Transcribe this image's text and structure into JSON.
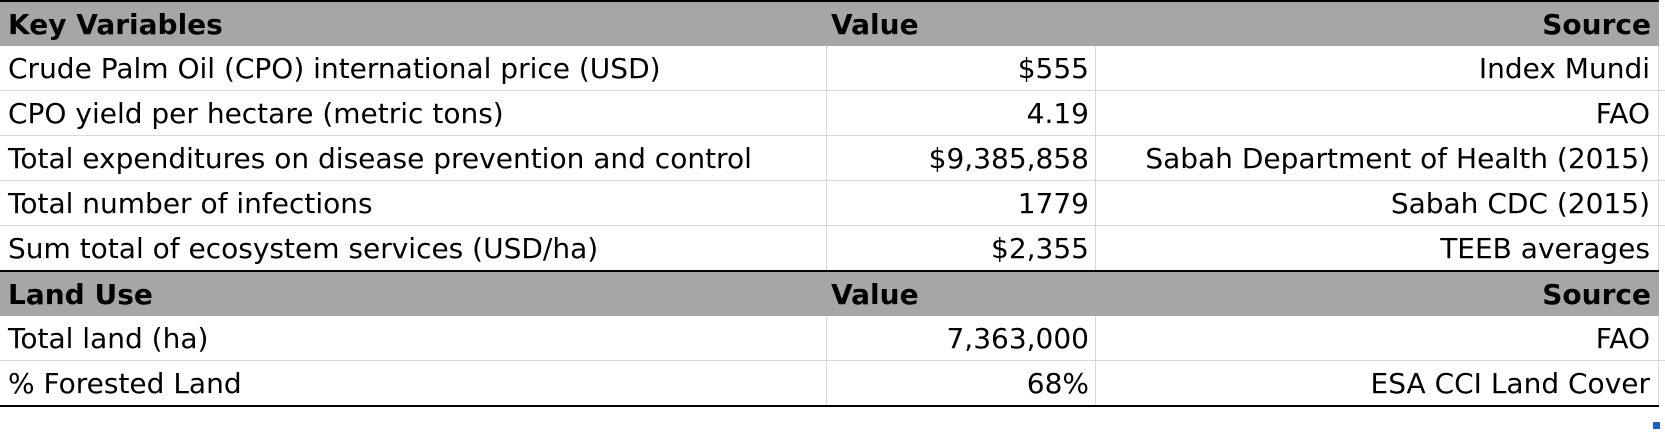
{
  "section1": {
    "header": {
      "col1": "Key Variables",
      "col2": "Value",
      "col3": "Source"
    },
    "rows": [
      {
        "label": "Crude Palm Oil (CPO) international price (USD)",
        "value": "$555",
        "source": "Index Mundi"
      },
      {
        "label": "CPO yield per hectare (metric tons)",
        "value": "4.19",
        "source": "FAO"
      },
      {
        "label": "Total expenditures on disease prevention and control",
        "value": "$9,385,858",
        "source": "Sabah Department of Health (2015)"
      },
      {
        "label": "Total number of infections",
        "value": "1779",
        "source": "Sabah CDC (2015)"
      },
      {
        "label": "Sum total of ecosystem services (USD/ha)",
        "value": "$2,355",
        "source": "TEEB averages"
      }
    ]
  },
  "section2": {
    "header": {
      "col1": "Land Use",
      "col2": "Value",
      "col3": "Source"
    },
    "rows": [
      {
        "label": "Total land (ha)",
        "value": "7,363,000",
        "source": "FAO"
      },
      {
        "label": "% Forested Land",
        "value": "68%",
        "source": "ESA CCI Land Cover"
      }
    ]
  },
  "colors": {
    "header_fill": "#a6a6a6",
    "gridline": "#d9d9d9",
    "border": "#000000",
    "selection_handle": "#1f5fbf"
  }
}
